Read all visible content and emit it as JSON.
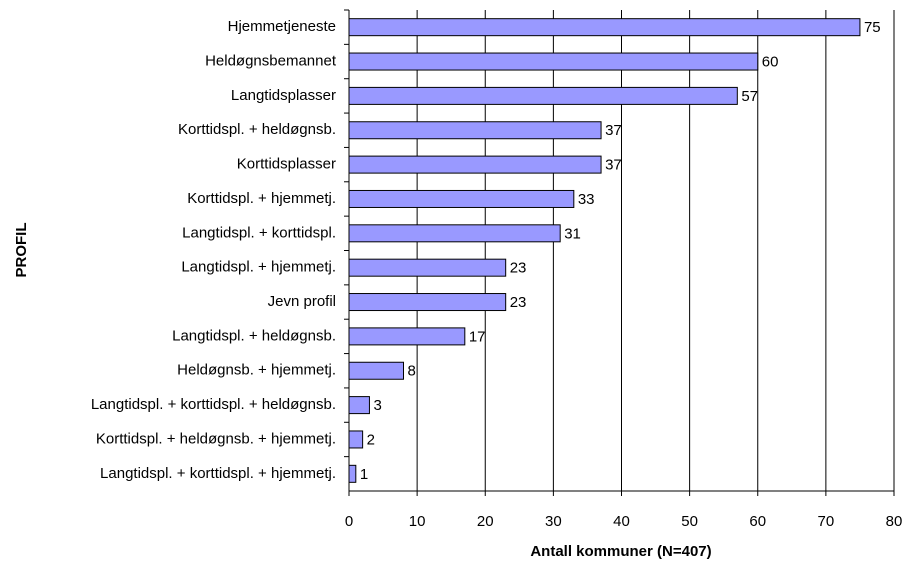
{
  "chart_data": {
    "type": "bar",
    "orientation": "horizontal",
    "xlabel": "Antall kommuner (N=407)",
    "ylabel": "PROFIL",
    "categories": [
      "Hjemmetjeneste",
      "Heldøgnsbemannet",
      "Langtidsplasser",
      "Korttidspl. + heldøgnsb.",
      "Korttidsplasser",
      "Korttidspl. + hjemmetj.",
      "Langtidspl. + korttidspl.",
      "Langtidspl. + hjemmetj.",
      "Jevn profil",
      "Langtidspl. + heldøgnsb.",
      "Heldøgnsb. + hjemmetj.",
      "Langtidspl. + korttidspl. + heldøgnsb.",
      "Korttidspl. + heldøgnsb. + hjemmetj.",
      "Langtidspl. + korttidspl. + hjemmetj."
    ],
    "values": [
      75,
      60,
      57,
      37,
      37,
      33,
      31,
      23,
      23,
      17,
      8,
      3,
      2,
      1
    ],
    "color": "#9999ff",
    "xlim": [
      0,
      80
    ],
    "xticks": [
      0,
      10,
      20,
      30,
      40,
      50,
      60,
      70,
      80
    ],
    "grid": true
  }
}
